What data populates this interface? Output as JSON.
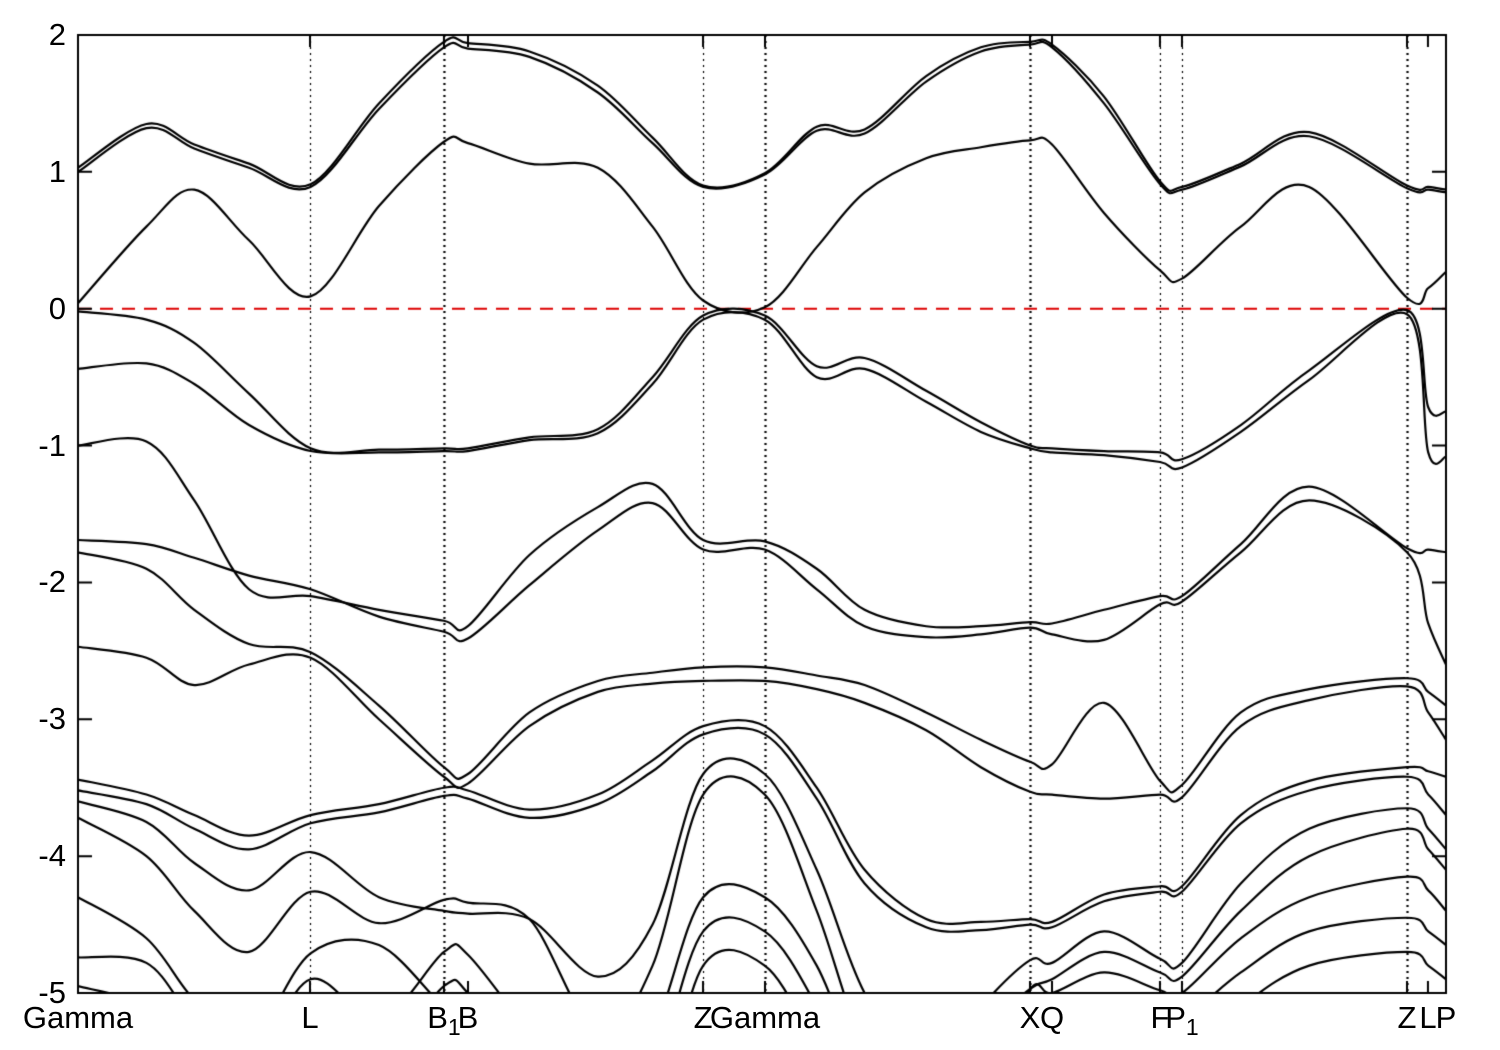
{
  "figure": {
    "background": "#ffffff",
    "line_color": "#000000",
    "fermi_color": "#dd0000"
  },
  "axes": {
    "y": {
      "min": -5,
      "max": 2,
      "tick_labels": [
        "2",
        "1",
        "0",
        "-1",
        "-2",
        "-3",
        "-4",
        "-5"
      ],
      "tick_values": [
        2,
        1,
        0,
        -1,
        -2,
        -3,
        -4,
        -5
      ]
    },
    "x": {
      "points": [
        {
          "label": "Gamma",
          "sub": "",
          "k": 0.0,
          "line": false,
          "strong": false
        },
        {
          "label": "L",
          "sub": "",
          "k": 0.1696,
          "line": true,
          "strong": false
        },
        {
          "label": "B",
          "sub": "1",
          "k": 0.2675,
          "line": true,
          "strong": true
        },
        {
          "label": "B",
          "sub": "",
          "k": 0.2851,
          "line": false,
          "strong": false
        },
        {
          "label": "Z",
          "sub": "",
          "k": 0.4569,
          "line": true,
          "strong": false
        },
        {
          "label": "Gamma",
          "sub": "",
          "k": 0.5022,
          "line": true,
          "strong": true
        },
        {
          "label": "X",
          "sub": "",
          "k": 0.6959,
          "line": true,
          "strong": true
        },
        {
          "label": "Q",
          "sub": "",
          "k": 0.712,
          "line": false,
          "strong": false
        },
        {
          "label": "F",
          "sub": "",
          "k": 0.7909,
          "line": true,
          "strong": false
        },
        {
          "label": "P",
          "sub": "1",
          "k": 0.807,
          "line": true,
          "strong": false
        },
        {
          "label": "Z",
          "sub": "",
          "k": 0.9715,
          "line": true,
          "strong": true
        },
        {
          "label": "L",
          "sub": "",
          "k": 0.9868,
          "line": false,
          "strong": false
        },
        {
          "label": "P",
          "sub": "",
          "k": 1.0,
          "line": false,
          "strong": false
        }
      ]
    }
  },
  "fermi": {
    "energy": 0
  },
  "chart_data": {
    "type": "line",
    "title": "",
    "xlabel": "",
    "ylabel": "",
    "ylim": [
      -5,
      2
    ],
    "grid": "vertical-dotted-at-symmetry-points",
    "legend": "none",
    "k_path_labels": [
      "Gamma",
      "L",
      "B1",
      "B",
      "Z",
      "Gamma",
      "X",
      "Q",
      "F",
      "P1",
      "Z",
      "L",
      "P"
    ],
    "fermi_level": 0,
    "k_stations": [
      0.0,
      0.05,
      0.085,
      0.125,
      0.17,
      0.22,
      0.2675,
      0.285,
      0.33,
      0.38,
      0.42,
      0.457,
      0.502,
      0.54,
      0.575,
      0.62,
      0.66,
      0.696,
      0.712,
      0.75,
      0.791,
      0.807,
      0.85,
      0.9,
      0.9715,
      0.987,
      1.0
    ],
    "bands": [
      [
        1.03,
        1.35,
        1.2,
        1.06,
        0.91,
        1.5,
        1.95,
        1.94,
        1.88,
        1.63,
        1.25,
        0.9,
        0.99,
        1.33,
        1.31,
        1.7,
        1.91,
        1.95,
        1.93,
        1.55,
        0.93,
        0.89,
        1.06,
        1.29,
        0.9,
        0.89,
        0.87
      ],
      [
        1.0,
        1.32,
        1.17,
        1.03,
        0.89,
        1.46,
        1.91,
        1.9,
        1.84,
        1.58,
        1.21,
        0.89,
        0.98,
        1.3,
        1.28,
        1.66,
        1.88,
        1.93,
        1.91,
        1.5,
        0.91,
        0.87,
        1.04,
        1.26,
        0.88,
        0.87,
        0.85
      ],
      [
        0.04,
        0.6,
        0.87,
        0.5,
        0.09,
        0.75,
        1.22,
        1.21,
        1.06,
        1.03,
        0.6,
        0.06,
        0.01,
        0.45,
        0.85,
        1.1,
        1.18,
        1.23,
        1.2,
        0.7,
        0.28,
        0.22,
        0.6,
        0.89,
        0.08,
        0.15,
        0.27
      ],
      [
        -0.02,
        -0.08,
        -0.25,
        -0.62,
        -1.02,
        -1.03,
        -1.02,
        -1.02,
        -0.94,
        -0.88,
        -0.5,
        -0.05,
        -0.05,
        -0.42,
        -0.36,
        -0.6,
        -0.83,
        -1.0,
        -1.02,
        -1.04,
        -1.05,
        -1.1,
        -0.85,
        -0.45,
        -0.01,
        -0.72,
        -0.75
      ],
      [
        -0.44,
        -0.4,
        -0.55,
        -0.85,
        -1.04,
        -1.05,
        -1.04,
        -1.04,
        -0.96,
        -0.91,
        -0.55,
        -0.08,
        -0.08,
        -0.5,
        -0.44,
        -0.68,
        -0.9,
        -1.02,
        -1.05,
        -1.07,
        -1.12,
        -1.16,
        -0.9,
        -0.52,
        -0.04,
        -1.05,
        -1.08
      ],
      [
        -1.0,
        -0.97,
        -1.4,
        -2.05,
        -2.1,
        -2.2,
        -2.28,
        -2.32,
        -1.8,
        -1.45,
        -1.28,
        -1.69,
        -1.7,
        -1.9,
        -2.2,
        -2.32,
        -2.32,
        -2.29,
        -2.3,
        -2.2,
        -2.1,
        -2.1,
        -1.72,
        -1.3,
        -1.75,
        -1.76,
        -1.78
      ],
      [
        -1.69,
        -1.72,
        -1.82,
        -1.95,
        -2.05,
        -2.25,
        -2.36,
        -2.41,
        -2.02,
        -1.62,
        -1.42,
        -1.76,
        -1.76,
        -2.05,
        -2.32,
        -2.4,
        -2.38,
        -2.33,
        -2.38,
        -2.42,
        -2.16,
        -2.14,
        -1.78,
        -1.4,
        -1.78,
        -2.3,
        -2.6
      ],
      [
        -1.78,
        -1.9,
        -2.2,
        -2.45,
        -2.51,
        -2.9,
        -3.35,
        -3.4,
        -2.95,
        -2.72,
        -2.66,
        -2.62,
        -2.62,
        -2.68,
        -2.75,
        -2.95,
        -3.15,
        -3.31,
        -3.33,
        -2.88,
        -3.45,
        -3.48,
        -2.95,
        -2.78,
        -2.7,
        -2.8,
        -2.9
      ],
      [
        -2.47,
        -2.55,
        -2.75,
        -2.6,
        -2.55,
        -3.0,
        -3.42,
        -3.47,
        -3.05,
        -2.8,
        -2.74,
        -2.72,
        -2.72,
        -2.78,
        -2.88,
        -3.08,
        -3.35,
        -3.53,
        -3.55,
        -3.58,
        -3.55,
        -3.57,
        -3.05,
        -2.86,
        -2.76,
        -2.95,
        -3.15
      ],
      [
        -3.44,
        -3.55,
        -3.7,
        -3.85,
        -3.7,
        -3.62,
        -3.5,
        -3.52,
        -3.66,
        -3.55,
        -3.3,
        -3.05,
        -3.05,
        -3.5,
        -4.1,
        -4.46,
        -4.48,
        -4.46,
        -4.48,
        -4.28,
        -4.22,
        -4.22,
        -3.7,
        -3.45,
        -3.35,
        -3.38,
        -3.42
      ],
      [
        -3.52,
        -3.62,
        -3.8,
        -3.95,
        -3.76,
        -3.68,
        -3.56,
        -3.58,
        -3.72,
        -3.62,
        -3.38,
        -3.11,
        -3.11,
        -3.58,
        -4.2,
        -4.52,
        -4.54,
        -4.5,
        -4.52,
        -4.33,
        -4.26,
        -4.26,
        -3.76,
        -3.52,
        -3.42,
        -3.55,
        -3.7
      ],
      [
        -3.6,
        -3.75,
        -4.05,
        -4.25,
        -3.97,
        -4.3,
        -4.4,
        -4.42,
        -4.46,
        -4.88,
        -4.5,
        -3.4,
        -3.4,
        -4.1,
        -5.0,
        -5.6,
        -5.1,
        -4.76,
        -4.78,
        -4.55,
        -4.75,
        -4.78,
        -4.2,
        -3.8,
        -3.65,
        -3.8,
        -3.95
      ],
      [
        -3.72,
        -4.0,
        -4.4,
        -4.7,
        -4.26,
        -4.49,
        -4.32,
        -4.34,
        -4.46,
        -5.3,
        -4.8,
        -3.55,
        -3.55,
        -4.4,
        -5.4,
        -6.0,
        -5.3,
        -4.97,
        -4.9,
        -4.7,
        -4.85,
        -4.88,
        -4.4,
        -4.0,
        -3.8,
        -3.95,
        -4.1
      ],
      [
        -4.3,
        -4.6,
        -5.05,
        -5.35,
        -4.71,
        -4.65,
        -5.1,
        -5.15,
        -5.6,
        -5.8,
        -5.3,
        -4.3,
        -4.3,
        -4.8,
        -5.6,
        -6.0,
        -5.6,
        -4.97,
        -5.0,
        -4.85,
        -4.98,
        -5.0,
        -4.6,
        -4.3,
        -4.15,
        -4.25,
        -4.4
      ],
      [
        -4.74,
        -4.78,
        -5.2,
        -5.5,
        -4.9,
        -5.2,
        -4.7,
        -4.72,
        -5.3,
        -6.0,
        -5.6,
        -4.55,
        -4.55,
        -5.1,
        -5.9,
        -6.0,
        -5.9,
        -5.3,
        -5.3,
        -5.1,
        -5.2,
        -5.2,
        -4.85,
        -4.55,
        -4.45,
        -4.55,
        -4.65
      ],
      [
        -4.95,
        -5.1,
        -5.5,
        -5.8,
        -5.15,
        -5.45,
        -4.95,
        -5.0,
        -5.6,
        -6.0,
        -6.0,
        -4.8,
        -4.8,
        -5.4,
        -6.0,
        -6.0,
        -6.0,
        -5.6,
        -5.6,
        -5.4,
        -5.5,
        -5.5,
        -5.1,
        -4.8,
        -4.7,
        -4.8,
        -4.9
      ]
    ]
  }
}
